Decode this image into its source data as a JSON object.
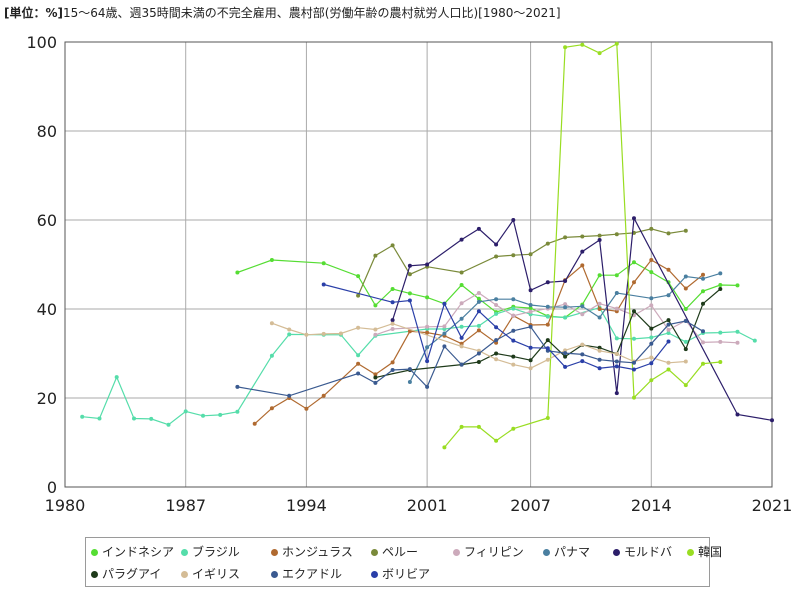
{
  "title": {
    "unit": "[単位：%]",
    "text": "15～64歳、週35時間未満の不完全雇用、農村部(労働年齢の農村就労人口比)[1980～2021]"
  },
  "chart_data": {
    "type": "line",
    "title": "15～64歳、週35時間未満の不完全雇用、農村部(労働年齢の農村就労人口比)[1980～2021]",
    "unit": "[単位：%]",
    "xlim": [
      1980,
      2021
    ],
    "ylim": [
      0,
      100
    ],
    "x_ticks": [
      1980,
      1987,
      1994,
      2001,
      2007,
      2014,
      2021
    ],
    "y_ticks": [
      0,
      20,
      40,
      60,
      80,
      100
    ],
    "grid": true,
    "legend_position": "bottom",
    "series": [
      {
        "name": "インドネシア",
        "color": "#55dd33",
        "points": [
          [
            1990,
            48.2
          ],
          [
            1992,
            51
          ],
          [
            1995,
            50.3
          ],
          [
            1997,
            47.4
          ],
          [
            1998,
            40.8
          ],
          [
            1999,
            44.5
          ],
          [
            2000,
            43.5
          ],
          [
            2001,
            42.6
          ],
          [
            2002,
            41.2
          ],
          [
            2003,
            45.4
          ],
          [
            2004,
            42.3
          ],
          [
            2005,
            39.3
          ],
          [
            2006,
            40.5
          ],
          [
            2007,
            40.2
          ],
          [
            2008,
            38.4
          ],
          [
            2009,
            38.1
          ],
          [
            2010,
            41
          ],
          [
            2011,
            47.6
          ],
          [
            2012,
            47.6
          ],
          [
            2013,
            50.5
          ],
          [
            2014,
            48.3
          ],
          [
            2015,
            46
          ],
          [
            2016,
            40
          ],
          [
            2017,
            44
          ],
          [
            2018,
            45.4
          ],
          [
            2019,
            45.3
          ]
        ]
      },
      {
        "name": "ブラジル",
        "color": "#55ddaa",
        "points": [
          [
            1981,
            15.8
          ],
          [
            1982,
            15.4
          ],
          [
            1983,
            24.7
          ],
          [
            1984,
            15.4
          ],
          [
            1985,
            15.3
          ],
          [
            1986,
            14
          ],
          [
            1987,
            17
          ],
          [
            1988,
            16
          ],
          [
            1989,
            16.2
          ],
          [
            1990,
            16.9
          ],
          [
            1992,
            29.5
          ],
          [
            1993,
            34.3
          ],
          [
            1995,
            34.2
          ],
          [
            1996,
            34.2
          ],
          [
            1997,
            29.6
          ],
          [
            1998,
            34
          ],
          [
            2001,
            35.5
          ],
          [
            2002,
            35.5
          ],
          [
            2003,
            36
          ],
          [
            2004,
            36.2
          ],
          [
            2005,
            38.9
          ],
          [
            2006,
            40.1
          ],
          [
            2007,
            38.8
          ],
          [
            2008,
            38.3
          ],
          [
            2009,
            38.1
          ],
          [
            2011,
            40.3
          ],
          [
            2012,
            33.4
          ],
          [
            2013,
            33.3
          ],
          [
            2014,
            33.6
          ],
          [
            2015,
            34.6
          ],
          [
            2016,
            32.6
          ],
          [
            2017,
            34.6
          ],
          [
            2018,
            34.7
          ],
          [
            2019,
            34.9
          ],
          [
            2020,
            32.9
          ]
        ]
      },
      {
        "name": "ホンジュラス",
        "color": "#b06a30",
        "points": [
          [
            1991,
            14.2
          ],
          [
            1992,
            17.7
          ],
          [
            1993,
            20
          ],
          [
            1994,
            17.6
          ],
          [
            1995,
            20.5
          ],
          [
            1997,
            27.7
          ],
          [
            1998,
            25.3
          ],
          [
            1999,
            28
          ],
          [
            2000,
            35
          ],
          [
            2001,
            34.7
          ],
          [
            2002,
            34
          ],
          [
            2003,
            32.2
          ],
          [
            2004,
            35.2
          ],
          [
            2005,
            32.4
          ],
          [
            2006,
            38.5
          ],
          [
            2007,
            36.4
          ],
          [
            2008,
            36.5
          ],
          [
            2009,
            46.5
          ],
          [
            2010,
            49.8
          ],
          [
            2011,
            40
          ],
          [
            2012,
            39.5
          ],
          [
            2013,
            46
          ],
          [
            2014,
            51
          ],
          [
            2015,
            48.8
          ],
          [
            2016,
            44.6
          ],
          [
            2017,
            47.7
          ]
        ]
      },
      {
        "name": "ペルー",
        "color": "#7a8a3a",
        "points": [
          [
            1997,
            43
          ],
          [
            1998,
            52
          ],
          [
            1999,
            54.3
          ],
          [
            2000,
            47.8
          ],
          [
            2001,
            49.5
          ],
          [
            2003,
            48.2
          ],
          [
            2005,
            51.8
          ],
          [
            2006,
            52.1
          ],
          [
            2007,
            52.3
          ],
          [
            2008,
            54.7
          ],
          [
            2009,
            56.1
          ],
          [
            2010,
            56.3
          ],
          [
            2011,
            56.5
          ],
          [
            2012,
            56.8
          ],
          [
            2013,
            57.1
          ],
          [
            2014,
            58
          ],
          [
            2015,
            57
          ],
          [
            2016,
            57.6
          ]
        ]
      },
      {
        "name": "フィリピン",
        "color": "#ccaabb",
        "points": [
          [
            1998,
            34.2
          ],
          [
            1999,
            35.5
          ],
          [
            2001,
            36
          ],
          [
            2002,
            36.1
          ],
          [
            2003,
            41.3
          ],
          [
            2004,
            43.6
          ],
          [
            2005,
            40.9
          ],
          [
            2006,
            38.5
          ],
          [
            2007,
            39.4
          ],
          [
            2008,
            40.1
          ],
          [
            2009,
            41.1
          ],
          [
            2010,
            38.8
          ],
          [
            2011,
            41.2
          ],
          [
            2012,
            40.1
          ],
          [
            2013,
            38.6
          ],
          [
            2014,
            40.8
          ],
          [
            2015,
            35.3
          ],
          [
            2016,
            37.4
          ],
          [
            2017,
            32.5
          ],
          [
            2018,
            32.6
          ],
          [
            2019,
            32.4
          ]
        ]
      },
      {
        "name": "パナマ",
        "color": "#4a7fa0",
        "points": [
          [
            2000,
            23.6
          ],
          [
            2001,
            31.4
          ],
          [
            2002,
            34.5
          ],
          [
            2003,
            37.8
          ],
          [
            2004,
            41.6
          ],
          [
            2005,
            42.2
          ],
          [
            2006,
            42.2
          ],
          [
            2007,
            40.9
          ],
          [
            2008,
            40.5
          ],
          [
            2009,
            40.4
          ],
          [
            2010,
            40.6
          ],
          [
            2011,
            38.1
          ],
          [
            2012,
            43.6
          ],
          [
            2014,
            42.4
          ],
          [
            2015,
            43.1
          ],
          [
            2016,
            47.3
          ],
          [
            2017,
            46.8
          ],
          [
            2018,
            48
          ]
        ]
      },
      {
        "name": "モルドバ",
        "color": "#2c1e6a",
        "points": [
          [
            1999,
            37.5
          ],
          [
            2000,
            49.7
          ],
          [
            2001,
            50
          ],
          [
            2003,
            55.6
          ],
          [
            2004,
            58
          ],
          [
            2005,
            54.5
          ],
          [
            2006,
            60
          ],
          [
            2007,
            44.2
          ],
          [
            2008,
            46
          ],
          [
            2009,
            46.3
          ],
          [
            2010,
            52.9
          ],
          [
            2011,
            55.5
          ],
          [
            2012,
            21.1
          ],
          [
            2013,
            60.4
          ],
          [
            2019,
            16.3
          ],
          [
            2021,
            15
          ]
        ]
      },
      {
        "name": "韓国",
        "color": "#99dd22",
        "points": [
          [
            2002,
            8.9
          ],
          [
            2003,
            13.5
          ],
          [
            2004,
            13.5
          ],
          [
            2005,
            10.4
          ],
          [
            2006,
            13.1
          ],
          [
            2008,
            15.5
          ],
          [
            2009,
            98.8
          ],
          [
            2010,
            99.4
          ],
          [
            2011,
            97.5
          ],
          [
            2012,
            99.6
          ],
          [
            2013,
            20.1
          ],
          [
            2014,
            24
          ],
          [
            2015,
            26.4
          ],
          [
            2016,
            22.9
          ],
          [
            2017,
            27.7
          ],
          [
            2018,
            28.1
          ]
        ]
      },
      {
        "name": "パラグアイ",
        "color": "#1e3a1a",
        "points": [
          [
            1998,
            24.6
          ],
          [
            2000,
            26.3
          ],
          [
            2003,
            27.5
          ],
          [
            2004,
            28.1
          ],
          [
            2005,
            30
          ],
          [
            2006,
            29.3
          ],
          [
            2007,
            28.5
          ],
          [
            2008,
            33
          ],
          [
            2009,
            29.3
          ],
          [
            2010,
            31.9
          ],
          [
            2011,
            31.3
          ],
          [
            2012,
            29.9
          ],
          [
            2013,
            39.5
          ],
          [
            2014,
            35.6
          ],
          [
            2015,
            37.5
          ],
          [
            2016,
            31
          ],
          [
            2017,
            41.2
          ],
          [
            2018,
            44.5
          ]
        ]
      },
      {
        "name": "イギリス",
        "color": "#d4bc96",
        "points": [
          [
            1992,
            36.8
          ],
          [
            1993,
            35.4
          ],
          [
            1994,
            34.2
          ],
          [
            1995,
            34.4
          ],
          [
            1996,
            34.5
          ],
          [
            1997,
            35.8
          ],
          [
            1998,
            35.4
          ],
          [
            1999,
            36.7
          ],
          [
            2003,
            31.6
          ],
          [
            2004,
            30.6
          ],
          [
            2005,
            28.7
          ],
          [
            2006,
            27.5
          ],
          [
            2007,
            26.7
          ],
          [
            2008,
            28.6
          ],
          [
            2009,
            30.7
          ],
          [
            2010,
            32
          ],
          [
            2011,
            30.6
          ],
          [
            2012,
            29.9
          ],
          [
            2013,
            28.2
          ],
          [
            2014,
            29.1
          ],
          [
            2015,
            27.9
          ],
          [
            2016,
            28.2
          ]
        ]
      },
      {
        "name": "エクアドル",
        "color": "#3a5a90",
        "points": [
          [
            1990,
            22.5
          ],
          [
            1993,
            20.5
          ],
          [
            1997,
            25.5
          ],
          [
            1998,
            23.4
          ],
          [
            1999,
            26.3
          ],
          [
            2000,
            26.5
          ],
          [
            2001,
            22.5
          ],
          [
            2002,
            31.6
          ],
          [
            2003,
            27.5
          ],
          [
            2004,
            30
          ],
          [
            2005,
            33
          ],
          [
            2006,
            35.1
          ],
          [
            2007,
            36
          ],
          [
            2008,
            30.6
          ],
          [
            2009,
            30.1
          ],
          [
            2010,
            29.8
          ],
          [
            2011,
            28.6
          ],
          [
            2012,
            28.2
          ],
          [
            2013,
            27.9
          ],
          [
            2014,
            32.2
          ],
          [
            2015,
            36.5
          ],
          [
            2016,
            37.3
          ],
          [
            2017,
            35
          ]
        ]
      },
      {
        "name": "ボリビア",
        "color": "#2a3fa8",
        "points": [
          [
            1995,
            45.5
          ],
          [
            1999,
            41.5
          ],
          [
            2000,
            41.9
          ],
          [
            2001,
            28.3
          ],
          [
            2002,
            41.2
          ],
          [
            2003,
            33.5
          ],
          [
            2004,
            39.5
          ],
          [
            2005,
            35.9
          ],
          [
            2006,
            32.9
          ],
          [
            2007,
            31.3
          ],
          [
            2008,
            31.2
          ],
          [
            2009,
            27
          ],
          [
            2010,
            28.3
          ],
          [
            2011,
            26.7
          ],
          [
            2012,
            27.1
          ],
          [
            2013,
            26.4
          ],
          [
            2014,
            27.8
          ],
          [
            2015,
            32.7
          ]
        ]
      }
    ]
  }
}
